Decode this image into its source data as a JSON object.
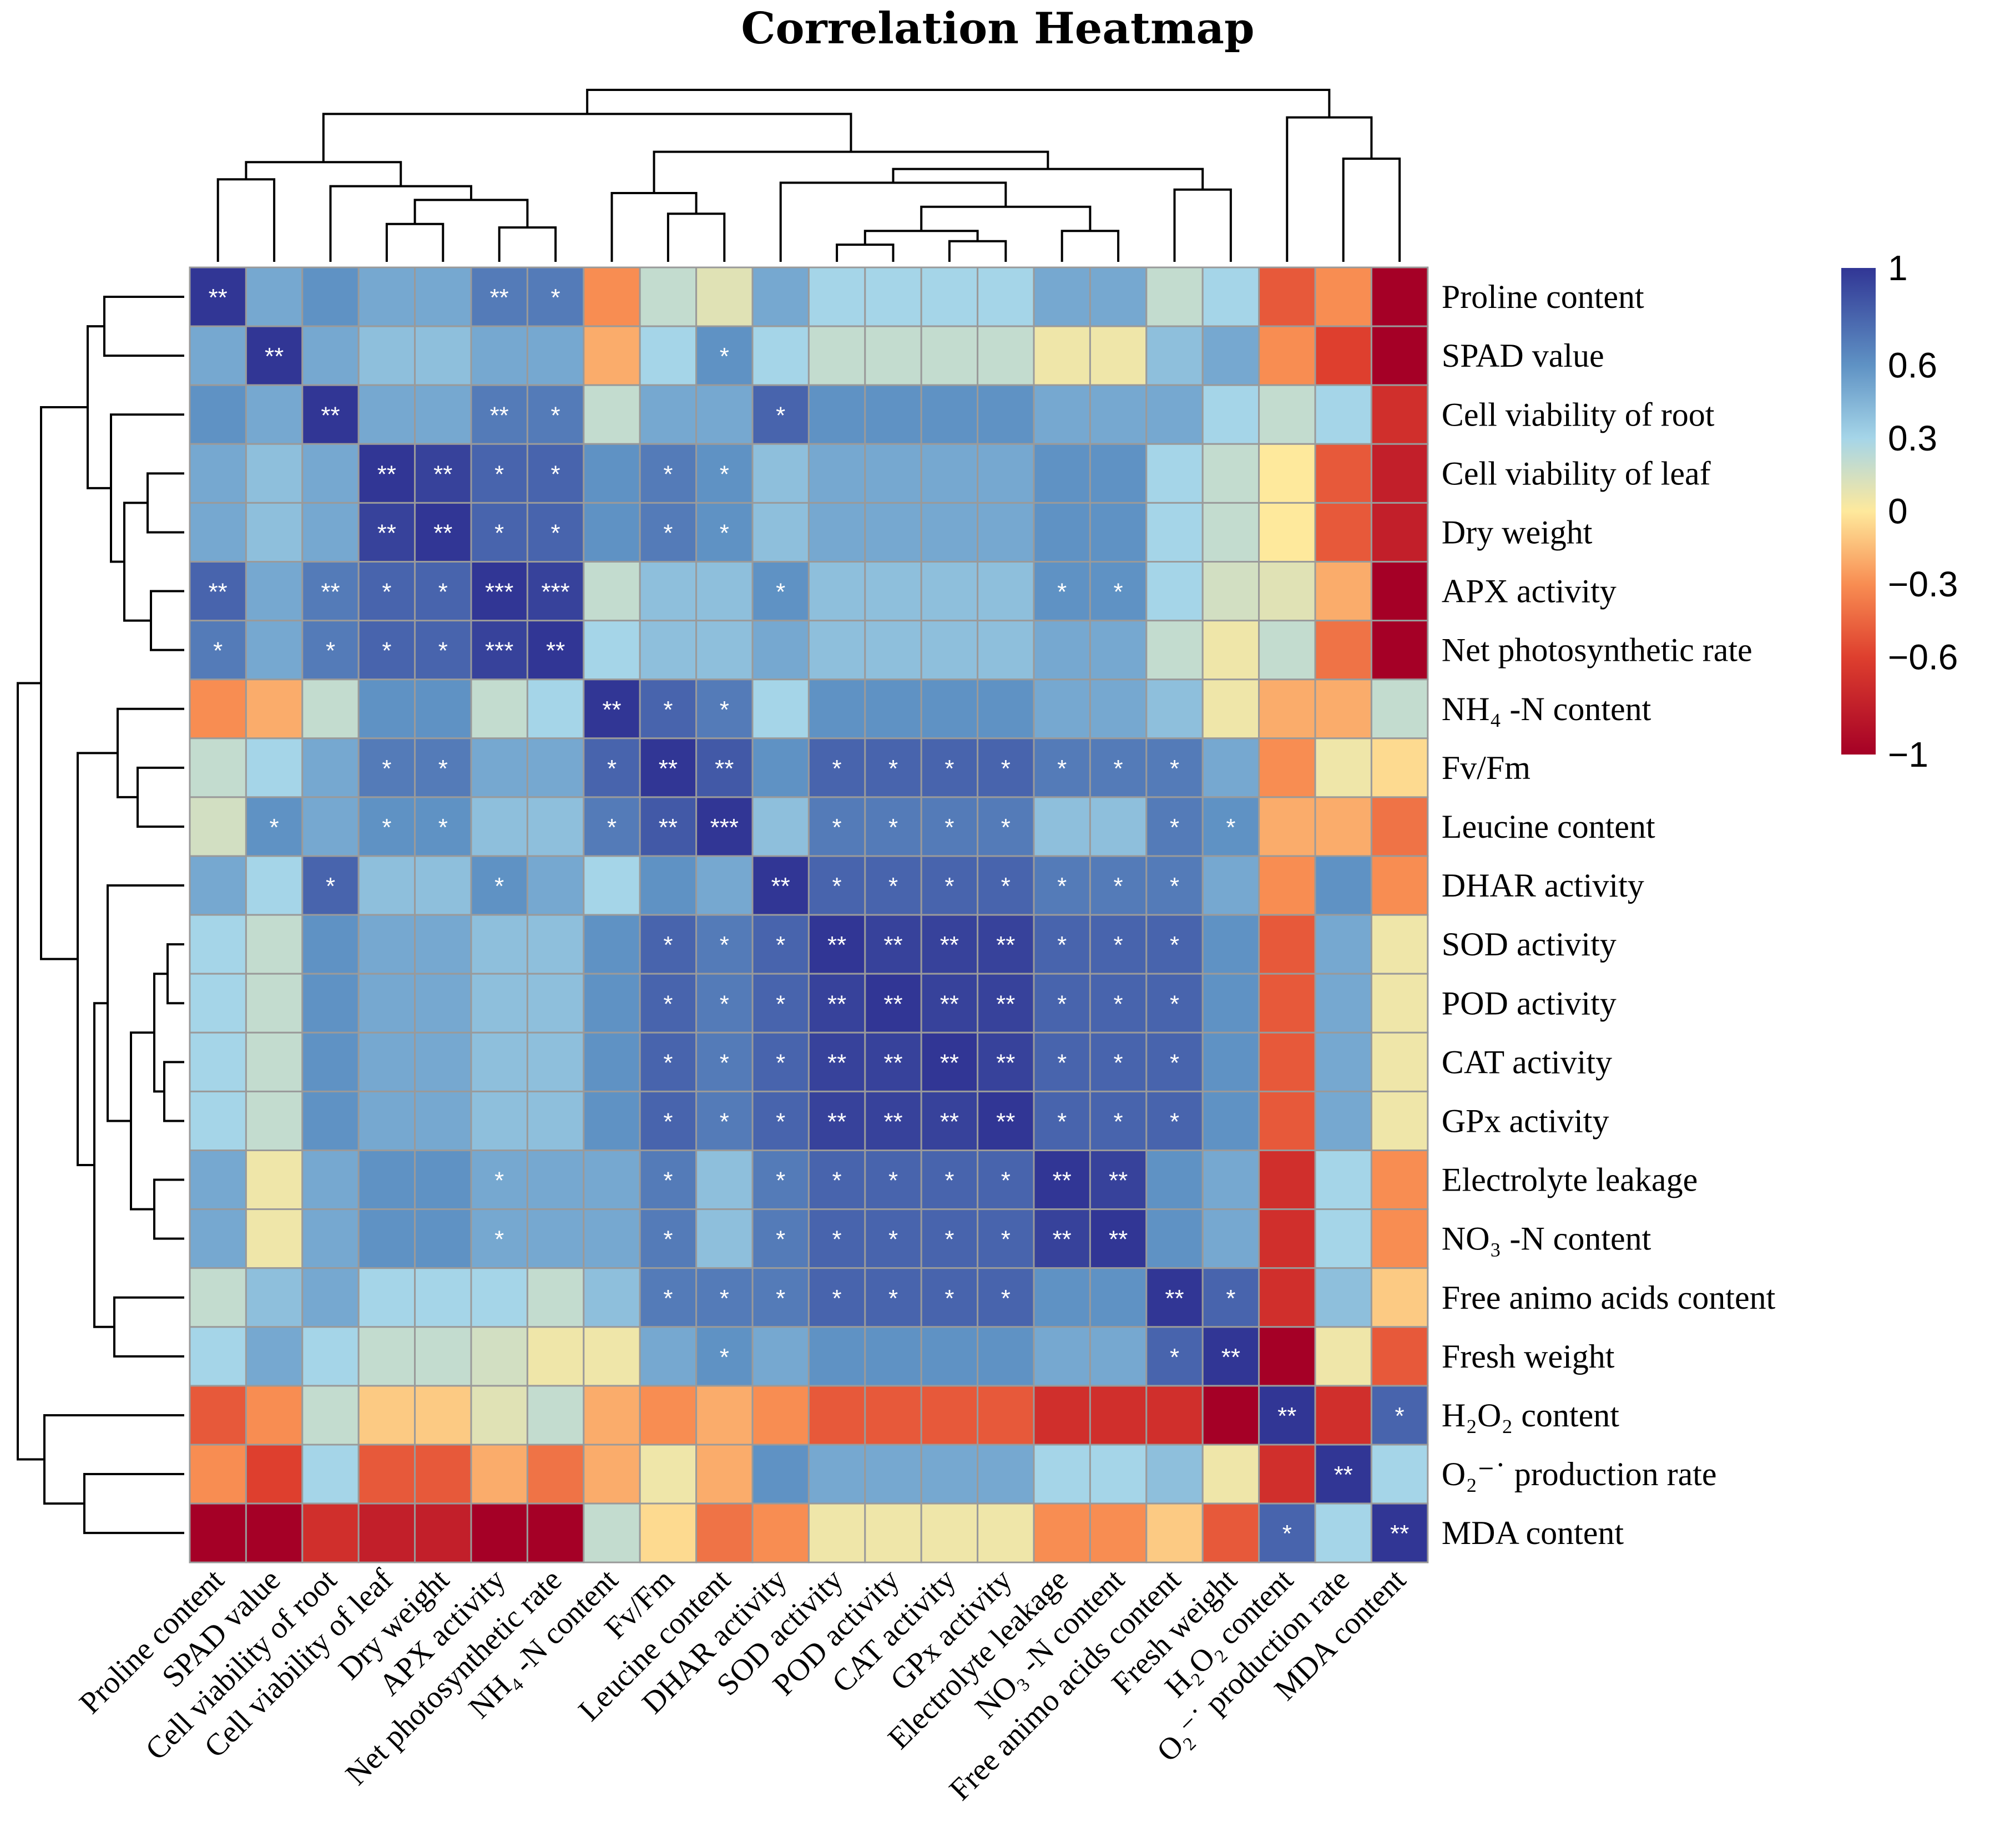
{
  "chart_data": {
    "type": "heatmap",
    "title": "Correlation Heatmap",
    "variables": [
      "Proline content",
      "SPAD value",
      "Cell viability of root",
      "Cell viability of leaf",
      "Dry weight",
      "APX activity",
      "Net photosynthetic rate",
      "NH₄ -N content",
      "Fv/Fm",
      "Leucine content",
      "DHAR activity",
      "SOD activity",
      "POD activity",
      "CAT activity",
      "GPx activity",
      "Electrolyte leakage",
      "NO₃ -N content",
      "Free animo acids content",
      "Fresh weight",
      "H₂O₂ content",
      "O₂⁻˙ production rate",
      "MDA content"
    ],
    "values": [
      [
        1.0,
        0.5,
        0.6,
        0.5,
        0.5,
        0.7,
        0.7,
        -0.3,
        0.2,
        0.1,
        0.5,
        0.3,
        0.3,
        0.3,
        0.3,
        0.5,
        0.5,
        0.2,
        0.3,
        -0.5,
        -0.3,
        -1.0
      ],
      [
        0.5,
        1.0,
        0.5,
        0.4,
        0.4,
        0.5,
        0.5,
        -0.2,
        0.3,
        0.6,
        0.3,
        0.2,
        0.2,
        0.2,
        0.2,
        0.05,
        0.05,
        0.4,
        0.5,
        -0.3,
        -0.6,
        -1.0
      ],
      [
        0.6,
        0.5,
        1.0,
        0.5,
        0.5,
        0.7,
        0.7,
        0.2,
        0.5,
        0.5,
        0.8,
        0.6,
        0.6,
        0.6,
        0.6,
        0.5,
        0.5,
        0.5,
        0.3,
        0.2,
        0.3,
        -0.7
      ],
      [
        0.5,
        0.4,
        0.5,
        1.0,
        0.95,
        0.8,
        0.8,
        0.6,
        0.7,
        0.6,
        0.4,
        0.5,
        0.5,
        0.5,
        0.5,
        0.6,
        0.6,
        0.3,
        0.2,
        0.0,
        -0.5,
        -0.8
      ],
      [
        0.5,
        0.4,
        0.5,
        0.95,
        1.0,
        0.8,
        0.8,
        0.6,
        0.7,
        0.6,
        0.4,
        0.5,
        0.5,
        0.5,
        0.5,
        0.6,
        0.6,
        0.3,
        0.2,
        0.0,
        -0.5,
        -0.8
      ],
      [
        0.8,
        0.5,
        0.7,
        0.8,
        0.8,
        1.0,
        0.95,
        0.2,
        0.4,
        0.4,
        0.6,
        0.4,
        0.4,
        0.4,
        0.4,
        0.6,
        0.6,
        0.3,
        0.15,
        0.1,
        -0.2,
        -1.0
      ],
      [
        0.7,
        0.5,
        0.7,
        0.8,
        0.8,
        0.95,
        1.0,
        0.3,
        0.4,
        0.4,
        0.5,
        0.4,
        0.4,
        0.4,
        0.4,
        0.5,
        0.5,
        0.2,
        0.05,
        0.2,
        -0.4,
        -1.0
      ],
      [
        -0.3,
        -0.2,
        0.2,
        0.6,
        0.6,
        0.2,
        0.3,
        1.0,
        0.8,
        0.7,
        0.3,
        0.6,
        0.6,
        0.6,
        0.6,
        0.5,
        0.5,
        0.4,
        0.05,
        -0.2,
        -0.2,
        0.2
      ],
      [
        0.2,
        0.3,
        0.5,
        0.7,
        0.7,
        0.5,
        0.5,
        0.8,
        1.0,
        0.85,
        0.6,
        0.8,
        0.8,
        0.8,
        0.8,
        0.7,
        0.7,
        0.7,
        0.5,
        -0.3,
        0.05,
        -0.05
      ],
      [
        0.15,
        0.6,
        0.5,
        0.6,
        0.6,
        0.4,
        0.4,
        0.7,
        0.85,
        1.0,
        0.4,
        0.7,
        0.7,
        0.7,
        0.7,
        0.4,
        0.4,
        0.7,
        0.6,
        -0.2,
        -0.2,
        -0.4
      ],
      [
        0.5,
        0.3,
        0.8,
        0.4,
        0.4,
        0.6,
        0.5,
        0.3,
        0.6,
        0.5,
        1.0,
        0.8,
        0.8,
        0.8,
        0.8,
        0.7,
        0.7,
        0.7,
        0.5,
        -0.3,
        0.6,
        -0.3
      ],
      [
        0.3,
        0.2,
        0.6,
        0.5,
        0.5,
        0.4,
        0.4,
        0.6,
        0.8,
        0.7,
        0.8,
        1.0,
        0.95,
        0.95,
        0.95,
        0.8,
        0.8,
        0.8,
        0.6,
        -0.5,
        0.5,
        0.05
      ],
      [
        0.3,
        0.2,
        0.6,
        0.5,
        0.5,
        0.4,
        0.4,
        0.6,
        0.8,
        0.7,
        0.8,
        0.95,
        1.0,
        0.95,
        0.95,
        0.8,
        0.8,
        0.8,
        0.6,
        -0.5,
        0.5,
        0.05
      ],
      [
        0.3,
        0.2,
        0.6,
        0.5,
        0.5,
        0.4,
        0.4,
        0.6,
        0.8,
        0.7,
        0.8,
        0.95,
        0.95,
        1.0,
        0.95,
        0.8,
        0.8,
        0.8,
        0.6,
        -0.5,
        0.5,
        0.05
      ],
      [
        0.3,
        0.2,
        0.6,
        0.5,
        0.5,
        0.4,
        0.4,
        0.6,
        0.8,
        0.7,
        0.8,
        0.95,
        0.95,
        0.95,
        1.0,
        0.8,
        0.8,
        0.8,
        0.6,
        -0.5,
        0.5,
        0.05
      ],
      [
        0.5,
        0.05,
        0.5,
        0.6,
        0.6,
        0.5,
        0.5,
        0.5,
        0.7,
        0.4,
        0.7,
        0.8,
        0.8,
        0.8,
        0.8,
        1.0,
        0.95,
        0.6,
        0.5,
        -0.7,
        0.3,
        -0.3
      ],
      [
        0.5,
        0.05,
        0.5,
        0.6,
        0.6,
        0.5,
        0.5,
        0.5,
        0.7,
        0.4,
        0.7,
        0.8,
        0.8,
        0.8,
        0.8,
        0.95,
        1.0,
        0.6,
        0.5,
        -0.7,
        0.3,
        -0.3
      ],
      [
        0.2,
        0.4,
        0.5,
        0.3,
        0.3,
        0.3,
        0.2,
        0.4,
        0.7,
        0.7,
        0.7,
        0.8,
        0.8,
        0.8,
        0.8,
        0.6,
        0.6,
        1.0,
        0.8,
        -0.7,
        0.4,
        -0.1
      ],
      [
        0.3,
        0.5,
        0.3,
        0.2,
        0.2,
        0.15,
        0.05,
        0.05,
        0.5,
        0.6,
        0.5,
        0.6,
        0.6,
        0.6,
        0.6,
        0.5,
        0.5,
        0.8,
        1.0,
        -1.0,
        0.05,
        -0.5
      ],
      [
        -0.5,
        -0.3,
        0.2,
        -0.1,
        -0.1,
        0.1,
        0.2,
        -0.2,
        -0.3,
        -0.2,
        -0.3,
        -0.5,
        -0.5,
        -0.5,
        -0.5,
        -0.7,
        -0.7,
        -0.7,
        -1.0,
        1.0,
        -0.7,
        0.8
      ],
      [
        -0.3,
        -0.6,
        0.3,
        -0.5,
        -0.5,
        -0.2,
        -0.4,
        -0.2,
        0.05,
        -0.2,
        0.6,
        0.5,
        0.5,
        0.5,
        0.5,
        0.3,
        0.3,
        0.4,
        0.05,
        -0.7,
        1.0,
        0.3
      ],
      [
        -1.0,
        -1.0,
        -0.7,
        -0.8,
        -0.8,
        -1.0,
        -1.0,
        0.2,
        -0.05,
        -0.4,
        -0.3,
        0.05,
        0.05,
        0.05,
        0.05,
        -0.3,
        -0.3,
        -0.1,
        -0.5,
        0.8,
        0.3,
        1.0
      ]
    ],
    "significance": [
      [
        "**",
        "",
        "",
        "",
        "",
        "**",
        "*",
        "",
        "",
        "",
        "",
        "",
        "",
        "",
        "",
        "",
        "",
        "",
        "",
        "",
        "",
        ""
      ],
      [
        "",
        "**",
        "",
        "",
        "",
        "",
        "",
        "",
        "",
        "*",
        "",
        "",
        "",
        "",
        "",
        "",
        "",
        "",
        "",
        "",
        "",
        ""
      ],
      [
        "",
        "",
        "**",
        "",
        "",
        "**",
        "*",
        "",
        "",
        "",
        "*",
        "",
        "",
        "",
        "",
        "",
        "",
        "",
        "",
        "",
        "",
        ""
      ],
      [
        "",
        "",
        "",
        "**",
        "**",
        "*",
        "*",
        "",
        "*",
        "*",
        "",
        "",
        "",
        "",
        "",
        "",
        "",
        "",
        "",
        "",
        "",
        ""
      ],
      [
        "",
        "",
        "",
        "**",
        "**",
        "*",
        "*",
        "",
        "*",
        "*",
        "",
        "",
        "",
        "",
        "",
        "",
        "",
        "",
        "",
        "",
        "",
        ""
      ],
      [
        "**",
        "",
        "**",
        "*",
        "*",
        "***",
        "***",
        "",
        "",
        "",
        "*",
        "",
        "",
        "",
        "",
        "*",
        "*",
        "",
        "",
        "",
        "",
        ""
      ],
      [
        "*",
        "",
        "*",
        "*",
        "*",
        "***",
        "**",
        "",
        "",
        "",
        "",
        "",
        "",
        "",
        "",
        "",
        "",
        "",
        "",
        "",
        "",
        ""
      ],
      [
        "",
        "",
        "",
        "",
        "",
        "",
        "",
        "**",
        "*",
        "*",
        "",
        "",
        "",
        "",
        "",
        "",
        "",
        "",
        "",
        "",
        "",
        ""
      ],
      [
        "",
        "",
        "",
        "*",
        "*",
        "",
        "",
        "*",
        "**",
        "**",
        "",
        "*",
        "*",
        "*",
        "*",
        "*",
        "*",
        "*",
        "",
        "",
        "",
        ""
      ],
      [
        "",
        "*",
        "",
        "*",
        "*",
        "",
        "",
        "*",
        "**",
        "***",
        "",
        "*",
        "*",
        "*",
        "*",
        "",
        "",
        "*",
        "*",
        "",
        "",
        ""
      ],
      [
        "",
        "",
        "*",
        "",
        "",
        "*",
        "",
        "",
        "",
        "",
        "**",
        "*",
        "*",
        "*",
        "*",
        "*",
        "*",
        "*",
        "",
        "",
        "",
        ""
      ],
      [
        "",
        "",
        "",
        "",
        "",
        "",
        "",
        "",
        "*",
        "*",
        "*",
        "**",
        "**",
        "**",
        "**",
        "*",
        "*",
        "*",
        "",
        "",
        "",
        ""
      ],
      [
        "",
        "",
        "",
        "",
        "",
        "",
        "",
        "",
        "*",
        "*",
        "*",
        "**",
        "**",
        "**",
        "**",
        "*",
        "*",
        "*",
        "",
        "",
        "",
        ""
      ],
      [
        "",
        "",
        "",
        "",
        "",
        "",
        "",
        "",
        "*",
        "*",
        "*",
        "**",
        "**",
        "**",
        "**",
        "*",
        "*",
        "*",
        "",
        "",
        "",
        ""
      ],
      [
        "",
        "",
        "",
        "",
        "",
        "",
        "",
        "",
        "*",
        "*",
        "*",
        "**",
        "**",
        "**",
        "**",
        "*",
        "*",
        "*",
        "",
        "",
        "",
        ""
      ],
      [
        "",
        "",
        "",
        "",
        "",
        "*",
        "",
        "",
        "*",
        "",
        "*",
        "*",
        "*",
        "*",
        "*",
        "**",
        "**",
        "",
        "",
        "",
        "",
        ""
      ],
      [
        "",
        "",
        "",
        "",
        "",
        "*",
        "",
        "",
        "*",
        "",
        "*",
        "*",
        "*",
        "*",
        "*",
        "**",
        "**",
        "",
        "",
        "",
        "",
        ""
      ],
      [
        "",
        "",
        "",
        "",
        "",
        "",
        "",
        "",
        "*",
        "*",
        "*",
        "*",
        "*",
        "*",
        "*",
        "",
        "",
        "**",
        "*",
        "",
        "",
        ""
      ],
      [
        "",
        "",
        "",
        "",
        "",
        "",
        "",
        "",
        "",
        "*",
        "",
        "",
        "",
        "",
        "",
        "",
        "",
        "*",
        "**",
        "",
        "",
        ""
      ],
      [
        "",
        "",
        "",
        "",
        "",
        "",
        "",
        "",
        "",
        "",
        "",
        "",
        "",
        "",
        "",
        "",
        "",
        "",
        "",
        "**",
        "",
        "*"
      ],
      [
        "",
        "",
        "",
        "",
        "",
        "",
        "",
        "",
        "",
        "",
        "",
        "",
        "",
        "",
        "",
        "",
        "",
        "",
        "",
        "",
        "**",
        ""
      ],
      [
        "",
        "",
        "",
        "",
        "",
        "",
        "",
        "",
        "",
        "",
        "",
        "",
        "",
        "",
        "",
        "",
        "",
        "",
        "",
        "*",
        "",
        "**"
      ]
    ],
    "color_scale": {
      "min": -1,
      "max": 1,
      "stops": [
        {
          "v": -1,
          "color": "#a50026"
        },
        {
          "v": -0.6,
          "color": "#de3f2e"
        },
        {
          "v": -0.3,
          "color": "#f88d52"
        },
        {
          "v": 0,
          "color": "#fee99c"
        },
        {
          "v": 0.3,
          "color": "#a5d5e8"
        },
        {
          "v": 0.6,
          "color": "#5f92c4"
        },
        {
          "v": 1,
          "color": "#313695"
        }
      ],
      "ticks": [
        {
          "v": 1,
          "label": "1"
        },
        {
          "v": 0.6,
          "label": "0.6"
        },
        {
          "v": 0.3,
          "label": "0.3"
        },
        {
          "v": 0,
          "label": "0"
        },
        {
          "v": -0.3,
          "label": "−0.3"
        },
        {
          "v": -0.6,
          "label": "−0.6"
        },
        {
          "v": -1,
          "label": "−1"
        }
      ]
    },
    "row_dendrogram": "hierarchical clustering (rows)",
    "column_dendrogram": "hierarchical clustering (columns)"
  }
}
